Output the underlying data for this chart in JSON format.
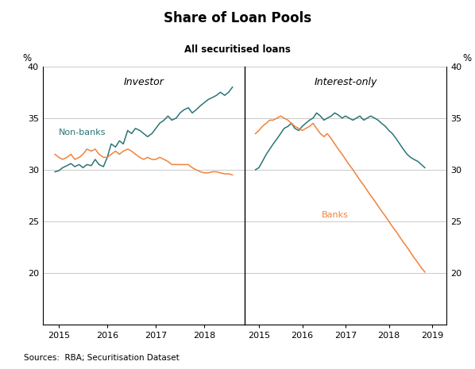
{
  "title": "Share of Loan Pools",
  "subtitle": "All securitised loans",
  "ylabel_left": "%",
  "ylabel_right": "%",
  "ylim": [
    15,
    40
  ],
  "yticks": [
    15,
    20,
    25,
    30,
    35,
    40
  ],
  "source": "Sources:  RBA; Securitisation Dataset",
  "panel_labels": [
    "Investor",
    "Interest-only"
  ],
  "color_nonbanks": "#2a7575",
  "color_banks": "#f0823c",
  "left_panel": {
    "nonbanks_x": [
      2014.92,
      2015.0,
      2015.08,
      2015.17,
      2015.25,
      2015.33,
      2015.42,
      2015.5,
      2015.58,
      2015.67,
      2015.75,
      2015.83,
      2015.92,
      2016.0,
      2016.08,
      2016.17,
      2016.25,
      2016.33,
      2016.42,
      2016.5,
      2016.58,
      2016.67,
      2016.75,
      2016.83,
      2016.92,
      2017.0,
      2017.08,
      2017.17,
      2017.25,
      2017.33,
      2017.42,
      2017.5,
      2017.58,
      2017.67,
      2017.75,
      2017.83,
      2017.92,
      2018.0,
      2018.08,
      2018.17,
      2018.25,
      2018.33,
      2018.42,
      2018.5,
      2018.58
    ],
    "nonbanks_y": [
      29.8,
      29.9,
      30.2,
      30.4,
      30.6,
      30.3,
      30.5,
      30.2,
      30.5,
      30.4,
      31.0,
      30.5,
      30.3,
      31.2,
      32.5,
      32.2,
      32.8,
      32.5,
      33.8,
      33.5,
      34.0,
      33.8,
      33.5,
      33.2,
      33.5,
      34.0,
      34.5,
      34.8,
      35.2,
      34.8,
      35.0,
      35.5,
      35.8,
      36.0,
      35.5,
      35.8,
      36.2,
      36.5,
      36.8,
      37.0,
      37.2,
      37.5,
      37.2,
      37.5,
      38.0
    ],
    "banks_x": [
      2014.92,
      2015.0,
      2015.08,
      2015.17,
      2015.25,
      2015.33,
      2015.42,
      2015.5,
      2015.58,
      2015.67,
      2015.75,
      2015.83,
      2015.92,
      2016.0,
      2016.08,
      2016.17,
      2016.25,
      2016.33,
      2016.42,
      2016.5,
      2016.58,
      2016.67,
      2016.75,
      2016.83,
      2016.92,
      2017.0,
      2017.08,
      2017.17,
      2017.25,
      2017.33,
      2017.42,
      2017.5,
      2017.58,
      2017.67,
      2017.75,
      2017.83,
      2017.92,
      2018.0,
      2018.08,
      2018.17,
      2018.25,
      2018.33,
      2018.42,
      2018.5,
      2018.58
    ],
    "banks_y": [
      31.5,
      31.2,
      31.0,
      31.2,
      31.5,
      31.0,
      31.2,
      31.5,
      32.0,
      31.8,
      32.0,
      31.5,
      31.2,
      31.2,
      31.5,
      31.8,
      31.5,
      31.8,
      32.0,
      31.8,
      31.5,
      31.2,
      31.0,
      31.2,
      31.0,
      31.0,
      31.2,
      31.0,
      30.8,
      30.5,
      30.5,
      30.5,
      30.5,
      30.5,
      30.2,
      30.0,
      29.8,
      29.7,
      29.7,
      29.8,
      29.8,
      29.7,
      29.6,
      29.6,
      29.5
    ],
    "xlim": [
      2014.67,
      2018.83
    ],
    "xticks": [
      2015,
      2016,
      2017,
      2018
    ],
    "xticklabels": [
      "2015",
      "2016",
      "2017",
      "2018"
    ]
  },
  "right_panel": {
    "nonbanks_x": [
      2014.92,
      2015.0,
      2015.08,
      2015.17,
      2015.25,
      2015.33,
      2015.42,
      2015.5,
      2015.58,
      2015.67,
      2015.75,
      2015.83,
      2015.92,
      2016.0,
      2016.08,
      2016.17,
      2016.25,
      2016.33,
      2016.42,
      2016.5,
      2016.58,
      2016.67,
      2016.75,
      2016.83,
      2016.92,
      2017.0,
      2017.08,
      2017.17,
      2017.25,
      2017.33,
      2017.42,
      2017.5,
      2017.58,
      2017.67,
      2017.75,
      2017.83,
      2017.92,
      2018.0,
      2018.08,
      2018.17,
      2018.25,
      2018.33,
      2018.42,
      2018.5,
      2018.58,
      2018.67,
      2018.75,
      2018.83
    ],
    "nonbanks_y": [
      30.0,
      30.2,
      30.8,
      31.5,
      32.0,
      32.5,
      33.0,
      33.5,
      34.0,
      34.2,
      34.5,
      34.0,
      33.8,
      34.2,
      34.5,
      34.8,
      35.0,
      35.5,
      35.2,
      34.8,
      35.0,
      35.2,
      35.5,
      35.3,
      35.0,
      35.2,
      35.0,
      34.8,
      35.0,
      35.2,
      34.8,
      35.0,
      35.2,
      35.0,
      34.8,
      34.5,
      34.2,
      33.8,
      33.5,
      33.0,
      32.5,
      32.0,
      31.5,
      31.2,
      31.0,
      30.8,
      30.5,
      30.2
    ],
    "banks_x": [
      2014.92,
      2015.0,
      2015.08,
      2015.17,
      2015.25,
      2015.33,
      2015.42,
      2015.5,
      2015.58,
      2015.67,
      2015.75,
      2015.83,
      2015.92,
      2016.0,
      2016.08,
      2016.17,
      2016.25,
      2016.33,
      2016.42,
      2016.5,
      2016.58,
      2016.67,
      2016.75,
      2016.83,
      2016.92,
      2017.0,
      2017.08,
      2017.17,
      2017.25,
      2017.33,
      2017.42,
      2017.5,
      2017.58,
      2017.67,
      2017.75,
      2017.83,
      2017.92,
      2018.0,
      2018.08,
      2018.17,
      2018.25,
      2018.33,
      2018.42,
      2018.5,
      2018.58,
      2018.67,
      2018.75,
      2018.83
    ],
    "banks_y": [
      33.5,
      33.8,
      34.2,
      34.5,
      34.8,
      34.8,
      35.0,
      35.2,
      35.0,
      34.8,
      34.5,
      34.2,
      34.0,
      33.8,
      34.0,
      34.2,
      34.5,
      34.0,
      33.5,
      33.2,
      33.5,
      33.0,
      32.5,
      32.0,
      31.5,
      31.0,
      30.5,
      30.0,
      29.5,
      29.0,
      28.5,
      28.0,
      27.5,
      27.0,
      26.5,
      26.0,
      25.5,
      25.0,
      24.5,
      24.0,
      23.5,
      23.0,
      22.5,
      22.0,
      21.5,
      21.0,
      20.5,
      20.1
    ],
    "xlim": [
      2014.67,
      2019.33
    ],
    "xticks": [
      2015,
      2016,
      2017,
      2018,
      2019
    ],
    "xticklabels": [
      "2015",
      "2016",
      "2017",
      "2018",
      "2019"
    ]
  }
}
